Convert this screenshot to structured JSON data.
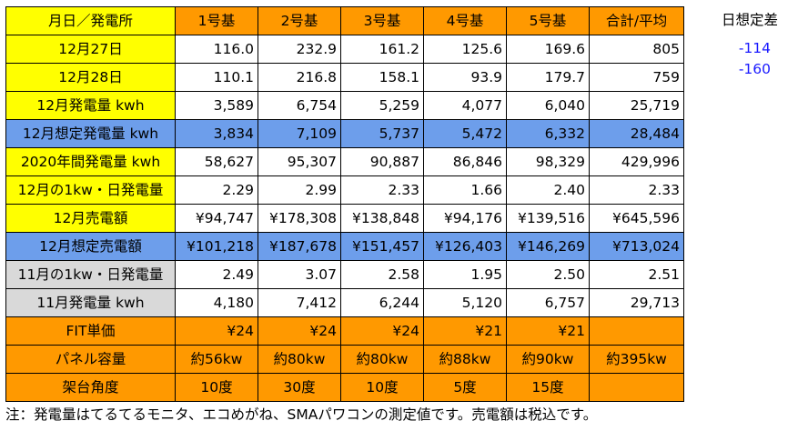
{
  "table": {
    "header": [
      "月日／発電所",
      "1号基",
      "2号基",
      "3号基",
      "4号基",
      "5号基",
      "合計/平均"
    ],
    "rows": [
      {
        "label": "12月27日",
        "values": [
          "116.0",
          "232.9",
          "161.2",
          "125.6",
          "169.6",
          "805"
        ],
        "label_color": "#ffff00",
        "row_color": "#ffffff"
      },
      {
        "label": "12月28日",
        "values": [
          "110.1",
          "216.8",
          "158.1",
          "93.9",
          "179.7",
          "759"
        ],
        "label_color": "#ffff00",
        "row_color": "#ffffff"
      },
      {
        "label": "12月発電量 kwh",
        "values": [
          "3,589",
          "6,754",
          "5,259",
          "4,077",
          "6,040",
          "25,719"
        ],
        "label_color": "#ffff00",
        "row_color": "#ffffff"
      },
      {
        "label": "12月想定発電量 kwh",
        "values": [
          "3,834",
          "7,109",
          "5,737",
          "5,472",
          "6,332",
          "28,484"
        ],
        "label_color": "#6d9eeb",
        "row_color": "#6d9eeb"
      },
      {
        "label": "2020年間発電量 kwh",
        "values": [
          "58,627",
          "95,307",
          "90,887",
          "86,846",
          "98,329",
          "429,996"
        ],
        "label_color": "#ffff00",
        "row_color": "#ffffff"
      },
      {
        "label": "12月の1kw・日発電量",
        "values": [
          "2.29",
          "2.99",
          "2.33",
          "1.66",
          "2.40",
          "2.33"
        ],
        "label_color": "#ffff00",
        "row_color": "#ffffff"
      },
      {
        "label": "12月売電額",
        "values": [
          "¥94,747",
          "¥178,308",
          "¥138,848",
          "¥94,176",
          "¥139,516",
          "¥645,596"
        ],
        "label_color": "#ffff00",
        "row_color": "#ffffff"
      },
      {
        "label": "12月想定売電額",
        "values": [
          "¥101,218",
          "¥187,678",
          "¥151,457",
          "¥126,403",
          "¥146,269",
          "¥713,024"
        ],
        "label_color": "#6d9eeb",
        "row_color": "#6d9eeb"
      },
      {
        "label": "11月の1kw・日発電量",
        "values": [
          "2.49",
          "3.07",
          "2.58",
          "1.95",
          "2.50",
          "2.51"
        ],
        "label_color": "#d9d9d9",
        "row_color": "#ffffff"
      },
      {
        "label": "11月発電量 kwh",
        "values": [
          "4,180",
          "7,412",
          "6,244",
          "5,120",
          "6,757",
          "29,713"
        ],
        "label_color": "#d9d9d9",
        "row_color": "#ffffff"
      },
      {
        "label": "FIT単価",
        "values": [
          "¥24",
          "¥24",
          "¥24",
          "¥21",
          "¥21",
          ""
        ],
        "label_color": "#ff9900",
        "row_color": "#ff9900"
      },
      {
        "label": "パネル容量",
        "values": [
          "約56kw",
          "約80kw",
          "約80kw",
          "約88kw",
          "約90kw",
          "約395kw"
        ],
        "label_color": "#ff9900",
        "row_color": "#ff9900",
        "centered": true
      },
      {
        "label": "架台角度",
        "values": [
          "10度",
          "30度",
          "10度",
          "5度",
          "15度",
          ""
        ],
        "label_color": "#ff9900",
        "row_color": "#ff9900",
        "centered": true
      }
    ]
  },
  "side": {
    "header": "日想定差",
    "values": [
      "-114",
      "-160"
    ]
  },
  "footnote": "注：発電量はてるてるモニタ、エコめがね、SMAパワコンの測定値です。売電額は税込です。"
}
